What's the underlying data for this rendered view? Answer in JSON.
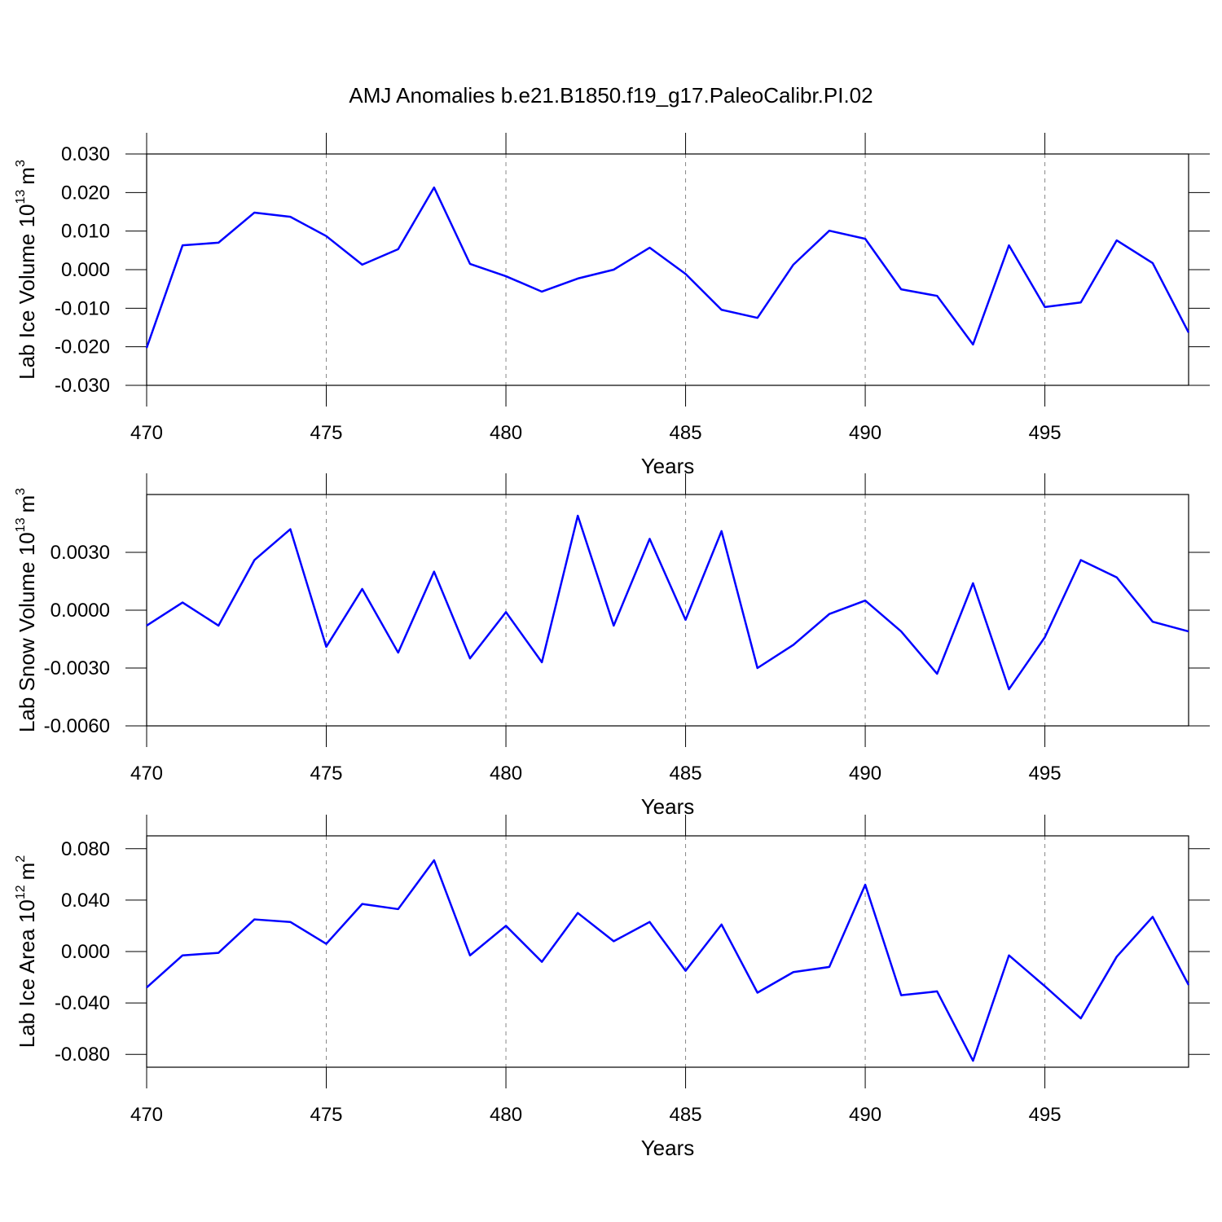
{
  "title": "AMJ Anomalies b.e21.B1850.f19_g17.PaleoCalibr.PI.02",
  "chart_data": [
    {
      "type": "line",
      "ylabel": [
        "Lab Ice Volume 10",
        "13",
        "m",
        "3"
      ],
      "xlabel": "Years",
      "x": [
        470,
        471,
        472,
        473,
        474,
        475,
        476,
        477,
        478,
        479,
        480,
        481,
        482,
        483,
        484,
        485,
        486,
        487,
        488,
        489,
        490,
        491,
        492,
        493,
        494,
        495,
        496,
        497,
        498,
        499
      ],
      "series": [
        {
          "color": "#0000ff",
          "values": [
            -0.0203,
            0.0063,
            0.007,
            0.0148,
            0.0137,
            0.0087,
            0.0013,
            0.0053,
            0.0213,
            0.0015,
            -0.0017,
            -0.0057,
            -0.0023,
            0.0,
            0.0057,
            -0.0011,
            -0.0104,
            -0.0125,
            0.0013,
            0.0101,
            0.008,
            -0.0051,
            -0.0068,
            -0.0194,
            0.0063,
            -0.0097,
            -0.0085,
            0.0076,
            0.0017,
            -0.0163
          ]
        }
      ],
      "xlim": [
        470,
        499
      ],
      "ylim": [
        -0.03,
        0.03
      ],
      "xticks": [
        470,
        475,
        480,
        485,
        490,
        495
      ],
      "yticks": [
        {
          "value": -0.03,
          "label": "-0.030"
        },
        {
          "value": -0.02,
          "label": "-0.020"
        },
        {
          "value": -0.01,
          "label": "-0.010"
        },
        {
          "value": 0,
          "label": "0.000"
        },
        {
          "value": 0.01,
          "label": "0.010"
        },
        {
          "value": 0.02,
          "label": "0.020"
        },
        {
          "value": 0.03,
          "label": "0.030"
        }
      ],
      "xgrid": true
    },
    {
      "type": "line",
      "ylabel": [
        "Lab Snow Volume 10",
        "13",
        "m",
        "3"
      ],
      "xlabel": "Years",
      "x": [
        470,
        471,
        472,
        473,
        474,
        475,
        476,
        477,
        478,
        479,
        480,
        481,
        482,
        483,
        484,
        485,
        486,
        487,
        488,
        489,
        490,
        491,
        492,
        493,
        494,
        495,
        496,
        497,
        498,
        499
      ],
      "series": [
        {
          "color": "#0000ff",
          "values": [
            -0.0008,
            0.0004,
            -0.0008,
            0.0026,
            0.0042,
            -0.0019,
            0.0011,
            -0.0022,
            0.002,
            -0.0025,
            -0.0001,
            -0.0027,
            0.0049,
            -0.0008,
            0.0037,
            -0.0005,
            0.0041,
            -0.003,
            -0.0018,
            -0.0002,
            0.0005,
            -0.0011,
            -0.0033,
            0.0014,
            -0.0041,
            -0.0014,
            0.0026,
            0.0017,
            -0.0006,
            -0.0011
          ]
        }
      ],
      "xlim": [
        470,
        499
      ],
      "ylim": [
        -0.006,
        0.006
      ],
      "xticks": [
        470,
        475,
        480,
        485,
        490,
        495
      ],
      "yticks": [
        {
          "value": -0.006,
          "label": "-0.0060"
        },
        {
          "value": -0.003,
          "label": "-0.0030"
        },
        {
          "value": 0,
          "label": "0.0000"
        },
        {
          "value": 0.003,
          "label": "0.0030"
        }
      ],
      "xgrid": true
    },
    {
      "type": "line",
      "ylabel": [
        "Lab Ice Area 10",
        "12",
        "m",
        "2"
      ],
      "xlabel": "Years",
      "x": [
        470,
        471,
        472,
        473,
        474,
        475,
        476,
        477,
        478,
        479,
        480,
        481,
        482,
        483,
        484,
        485,
        486,
        487,
        488,
        489,
        490,
        491,
        492,
        493,
        494,
        495,
        496,
        497,
        498,
        499
      ],
      "series": [
        {
          "color": "#0000ff",
          "values": [
            -0.028,
            -0.003,
            -0.001,
            0.025,
            0.023,
            0.006,
            0.037,
            0.033,
            0.071,
            -0.003,
            0.02,
            -0.008,
            0.03,
            0.008,
            0.023,
            -0.015,
            0.021,
            -0.032,
            -0.016,
            -0.012,
            0.052,
            -0.034,
            -0.031,
            -0.085,
            -0.003,
            -0.027,
            -0.052,
            -0.004,
            0.027,
            -0.026
          ]
        }
      ],
      "xlim": [
        470,
        499
      ],
      "ylim": [
        -0.09,
        0.09
      ],
      "xticks": [
        470,
        475,
        480,
        485,
        490,
        495
      ],
      "yticks": [
        {
          "value": -0.08,
          "label": "-0.080"
        },
        {
          "value": -0.04,
          "label": "-0.040"
        },
        {
          "value": 0,
          "label": "0.000"
        },
        {
          "value": 0.04,
          "label": "0.040"
        },
        {
          "value": 0.08,
          "label": "0.080"
        }
      ],
      "xgrid": true
    }
  ]
}
